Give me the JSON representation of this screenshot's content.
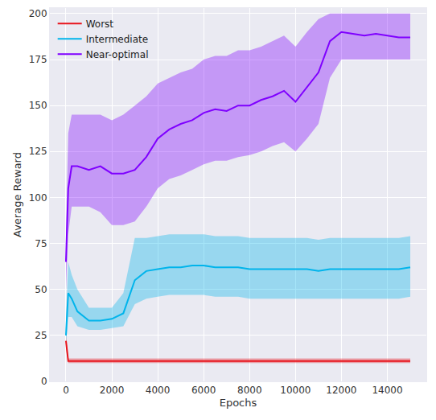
{
  "chart_data": {
    "type": "line",
    "x_label": "Epochs",
    "y_label": "Average Reward",
    "x": [
      0,
      100,
      250,
      500,
      1000,
      1500,
      2000,
      2500,
      3000,
      3500,
      4000,
      4500,
      5000,
      5500,
      6000,
      6500,
      7000,
      7500,
      8000,
      8500,
      9000,
      9500,
      10000,
      10500,
      11000,
      11500,
      12000,
      12500,
      13000,
      13500,
      14000,
      14500,
      15000
    ],
    "series": [
      {
        "name": "Near-optimal",
        "color": "#7f00ff",
        "values": [
          65,
          105,
          117,
          117,
          115,
          117,
          113,
          113,
          115,
          122,
          132,
          137,
          140,
          142,
          146,
          148,
          147,
          150,
          150,
          153,
          155,
          158,
          152,
          160,
          168,
          185,
          190,
          189,
          188,
          189,
          188,
          187,
          187
        ],
        "lower": [
          50,
          80,
          95,
          95,
          95,
          92,
          85,
          85,
          87,
          95,
          105,
          110,
          112,
          115,
          118,
          120,
          120,
          122,
          123,
          125,
          128,
          130,
          125,
          132,
          140,
          165,
          175,
          175,
          175,
          175,
          175,
          175,
          175
        ],
        "upper": [
          80,
          135,
          145,
          145,
          145,
          145,
          142,
          145,
          150,
          155,
          162,
          165,
          168,
          170,
          175,
          177,
          177,
          180,
          180,
          182,
          185,
          188,
          182,
          190,
          197,
          200,
          200,
          200,
          200,
          200,
          200,
          200,
          200
        ]
      },
      {
        "name": "Intermediate",
        "color": "#00b4eb",
        "values": [
          25,
          48,
          45,
          38,
          33,
          33,
          34,
          37,
          55,
          60,
          61,
          62,
          62,
          63,
          63,
          62,
          62,
          62,
          61,
          61,
          61,
          61,
          61,
          61,
          60,
          61,
          61,
          61,
          61,
          61,
          61,
          61,
          62
        ],
        "lower": [
          20,
          35,
          35,
          30,
          28,
          28,
          29,
          30,
          42,
          45,
          46,
          47,
          47,
          47,
          47,
          46,
          46,
          46,
          45,
          45,
          45,
          45,
          45,
          45,
          45,
          45,
          45,
          45,
          45,
          45,
          45,
          45,
          46
        ],
        "upper": [
          35,
          65,
          58,
          50,
          40,
          40,
          40,
          48,
          78,
          78,
          79,
          80,
          80,
          80,
          80,
          79,
          79,
          79,
          78,
          78,
          78,
          78,
          78,
          78,
          77,
          78,
          78,
          78,
          78,
          78,
          78,
          78,
          79
        ]
      },
      {
        "name": "Worst",
        "color": "#e8141c",
        "values": [
          22,
          11,
          11,
          11,
          11,
          11,
          11,
          11,
          11,
          11,
          11,
          11,
          11,
          11,
          11,
          11,
          11,
          11,
          11,
          11,
          11,
          11,
          11,
          11,
          11,
          11,
          11,
          11,
          11,
          11,
          11,
          11,
          11
        ],
        "lower": [
          18,
          10,
          10,
          10,
          10,
          10,
          10,
          10,
          10,
          10,
          10,
          10,
          10,
          10,
          10,
          10,
          10,
          10,
          10,
          10,
          10,
          10,
          10,
          10,
          10,
          10,
          10,
          10,
          10,
          10,
          10,
          10,
          10
        ],
        "upper": [
          25,
          12.5,
          12.5,
          12.5,
          12.5,
          12.5,
          12.5,
          12.5,
          12.5,
          12.5,
          12.5,
          12.5,
          12.5,
          12.5,
          12.5,
          12.5,
          12.5,
          12.5,
          12.5,
          12.5,
          12.5,
          12.5,
          12.5,
          12.5,
          12.5,
          12.5,
          12.5,
          12.5,
          12.5,
          12.5,
          12.5,
          12.5,
          12.5
        ]
      }
    ],
    "xlim": [
      -700,
      15700
    ],
    "xticks": [
      0,
      2000,
      4000,
      6000,
      8000,
      10000,
      12000,
      14000
    ],
    "ylim": [
      0,
      203
    ],
    "yticks": [
      0,
      25,
      50,
      75,
      100,
      125,
      150,
      175,
      200
    ],
    "grid": true,
    "legend": "top-left"
  }
}
